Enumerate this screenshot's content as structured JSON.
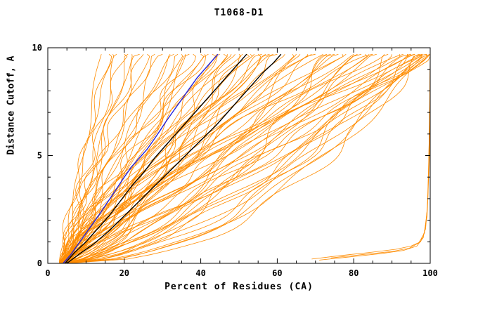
{
  "chart_data": {
    "type": "line",
    "title": "T1068-D1",
    "xlabel": "Percent of Residues (CA)",
    "ylabel": "Distance Cutoff, A",
    "xlim": [
      0,
      100
    ],
    "ylim": [
      0,
      10
    ],
    "x_ticks": [
      0,
      20,
      40,
      60,
      80,
      100
    ],
    "y_ticks": [
      0,
      5,
      10
    ],
    "x_minor_step": 5,
    "y_minor_step": 1,
    "grid": false,
    "legend": "none",
    "top_y": 9.7,
    "colors": {
      "models": "#ff8c00",
      "reference": "#000000",
      "highlight": "#2222dd",
      "axis": "#000000",
      "background": "#ffffff"
    },
    "series": [
      {
        "name": "black-curve-1",
        "color_key": "reference",
        "width": 1.4,
        "points": [
          [
            4.5,
            0
          ],
          [
            7,
            0.5
          ],
          [
            10,
            1
          ],
          [
            13,
            1.6
          ],
          [
            16,
            2.2
          ],
          [
            19,
            2.9
          ],
          [
            22,
            3.6
          ],
          [
            25,
            4.2
          ],
          [
            28,
            4.9
          ],
          [
            31,
            5.5
          ],
          [
            34,
            6.1
          ],
          [
            37,
            6.7
          ],
          [
            40,
            7.3
          ],
          [
            43,
            7.9
          ],
          [
            46,
            8.5
          ],
          [
            49,
            9.1
          ],
          [
            52,
            9.7
          ]
        ]
      },
      {
        "name": "black-curve-2",
        "color_key": "reference",
        "width": 1.4,
        "points": [
          [
            5,
            0
          ],
          [
            8,
            0.4
          ],
          [
            12,
            0.9
          ],
          [
            16,
            1.5
          ],
          [
            20,
            2.2
          ],
          [
            24,
            2.9
          ],
          [
            28,
            3.6
          ],
          [
            32,
            4.3
          ],
          [
            36,
            5
          ],
          [
            40,
            5.7
          ],
          [
            44,
            6.4
          ],
          [
            47,
            7
          ],
          [
            50,
            7.6
          ],
          [
            53,
            8.2
          ],
          [
            56,
            8.8
          ],
          [
            59,
            9.3
          ],
          [
            61,
            9.7
          ]
        ]
      },
      {
        "name": "blue-curve",
        "color_key": "highlight",
        "width": 1.4,
        "points": [
          [
            4,
            0
          ],
          [
            6,
            0.4
          ],
          [
            8,
            0.9
          ],
          [
            10,
            1.4
          ],
          [
            12,
            1.9
          ],
          [
            14,
            2.4
          ],
          [
            15.5,
            2.8
          ],
          [
            17,
            3.2
          ],
          [
            18.5,
            3.6
          ],
          [
            20,
            4
          ],
          [
            22,
            4.5
          ],
          [
            24,
            4.9
          ],
          [
            26,
            5.3
          ],
          [
            28,
            5.8
          ],
          [
            29.5,
            6.2
          ],
          [
            31,
            6.6
          ],
          [
            33,
            7.1
          ],
          [
            35,
            7.6
          ],
          [
            37,
            8.1
          ],
          [
            39,
            8.6
          ],
          [
            41,
            9
          ],
          [
            43,
            9.4
          ],
          [
            44.5,
            9.7
          ]
        ]
      }
    ],
    "outlier_curves": [
      [
        [
          69,
          0.2
        ],
        [
          76,
          0.35
        ],
        [
          84,
          0.5
        ],
        [
          91,
          0.65
        ],
        [
          95,
          0.8
        ],
        [
          97.5,
          1
        ],
        [
          98.8,
          1.6
        ],
        [
          99.4,
          3
        ],
        [
          99.7,
          5.5
        ],
        [
          99.9,
          8
        ],
        [
          100,
          9.7
        ]
      ],
      [
        [
          71,
          0.15
        ],
        [
          79,
          0.3
        ],
        [
          87,
          0.45
        ],
        [
          93,
          0.6
        ],
        [
          96.5,
          0.8
        ],
        [
          98.2,
          1.2
        ],
        [
          99.2,
          2.2
        ],
        [
          99.6,
          4.5
        ],
        [
          99.9,
          7.5
        ],
        [
          100,
          9.7
        ]
      ],
      [
        [
          74,
          0.25
        ],
        [
          82,
          0.4
        ],
        [
          90,
          0.55
        ],
        [
          94.5,
          0.7
        ],
        [
          97,
          0.95
        ],
        [
          98.5,
          1.4
        ],
        [
          99.3,
          2.6
        ],
        [
          99.8,
          5
        ],
        [
          100,
          9.7
        ]
      ]
    ],
    "model_curve_specs_format": [
      "x_at_y0",
      "x_at_top",
      "shape_exp",
      "wiggle_amp",
      "wiggle_freq",
      "wiggle_phase"
    ],
    "model_curve_specs": [
      [
        4,
        14,
        1.0,
        0.8,
        1.3,
        0.0
      ],
      [
        3,
        16,
        1.1,
        1.2,
        2.1,
        0.7
      ],
      [
        5,
        18,
        0.9,
        1.0,
        1.7,
        1.4
      ],
      [
        4,
        20,
        1.2,
        1.5,
        2.5,
        2.1
      ],
      [
        3,
        22,
        1.0,
        0.9,
        1.3,
        2.8
      ],
      [
        5,
        24,
        1.3,
        1.8,
        2.1,
        3.5
      ],
      [
        4,
        26,
        0.85,
        1.1,
        1.7,
        4.2
      ],
      [
        3,
        28,
        1.15,
        1.4,
        2.5,
        4.9
      ],
      [
        5,
        30,
        1.0,
        2.0,
        1.3,
        5.6
      ],
      [
        4,
        17,
        1.25,
        0.7,
        2.1,
        6.0
      ],
      [
        5,
        21,
        0.95,
        1.3,
        1.7,
        0.3
      ],
      [
        3,
        25,
        1.1,
        1.6,
        2.5,
        1.0
      ],
      [
        4,
        32,
        1.0,
        1.2,
        1.6,
        0.5
      ],
      [
        5,
        34,
        1.2,
        1.8,
        2.2,
        1.2
      ],
      [
        3,
        36,
        0.9,
        1.0,
        1.4,
        1.9
      ],
      [
        4,
        38,
        1.1,
        2.2,
        2.6,
        2.6
      ],
      [
        5,
        40,
        1.0,
        1.5,
        1.8,
        3.3
      ],
      [
        3,
        42,
        1.3,
        1.1,
        1.3,
        4.0
      ],
      [
        4,
        44,
        0.85,
        1.7,
        2.4,
        4.7
      ],
      [
        5,
        46,
        1.15,
        2.0,
        1.6,
        5.4
      ],
      [
        3,
        48,
        1.0,
        1.3,
        2.0,
        6.1
      ],
      [
        4,
        50,
        1.2,
        1.6,
        1.4,
        0.2
      ],
      [
        5,
        52,
        0.95,
        2.3,
        2.6,
        0.9
      ],
      [
        3,
        54,
        1.1,
        1.2,
        1.8,
        1.6
      ],
      [
        4,
        56,
        1.0,
        1.9,
        2.2,
        2.3
      ],
      [
        5,
        58,
        1.25,
        1.4,
        1.5,
        3.0
      ],
      [
        3,
        60,
        0.9,
        2.1,
        2.7,
        3.7
      ],
      [
        4,
        33,
        1.35,
        1.0,
        2.0,
        4.4
      ],
      [
        5,
        37,
        0.8,
        1.6,
        1.3,
        5.1
      ],
      [
        3,
        41,
        1.05,
        2.4,
        2.3,
        5.8
      ],
      [
        4,
        45,
        1.2,
        1.1,
        1.7,
        0.4
      ],
      [
        5,
        49,
        0.9,
        1.8,
        2.5,
        1.1
      ],
      [
        3,
        53,
        1.15,
        1.5,
        1.9,
        1.8
      ],
      [
        4,
        57,
        1.0,
        2.2,
        1.4,
        2.5
      ],
      [
        5,
        59,
        1.3,
        1.2,
        2.1,
        3.2
      ],
      [
        4,
        35,
        0.6,
        1.5,
        1.6,
        3.9
      ],
      [
        5,
        43,
        0.55,
        1.9,
        2.3,
        4.6
      ],
      [
        3,
        51,
        0.6,
        1.3,
        1.8,
        5.3
      ],
      [
        4,
        47,
        0.5,
        1.7,
        2.0,
        6.0
      ],
      [
        5,
        55,
        0.65,
        2.0,
        1.5,
        0.6
      ],
      [
        4,
        62,
        1.0,
        1.4,
        1.9,
        0.8
      ],
      [
        5,
        64,
        1.2,
        2.0,
        1.4,
        1.5
      ],
      [
        3,
        66,
        0.9,
        1.2,
        2.4,
        2.2
      ],
      [
        4,
        68,
        1.1,
        1.8,
        1.7,
        2.9
      ],
      [
        5,
        70,
        1.0,
        2.4,
        2.1,
        3.6
      ],
      [
        3,
        72,
        1.25,
        1.3,
        1.5,
        4.3
      ],
      [
        4,
        74,
        0.85,
        1.9,
        2.6,
        5.0
      ],
      [
        5,
        76,
        1.15,
        1.5,
        1.8,
        5.7
      ],
      [
        3,
        78,
        1.0,
        2.2,
        1.3,
        0.1
      ],
      [
        4,
        80,
        1.2,
        1.6,
        2.2,
        0.8
      ],
      [
        5,
        82,
        0.95,
        2.0,
        1.6,
        1.5
      ],
      [
        3,
        84,
        1.1,
        1.4,
        2.0,
        2.2
      ],
      [
        4,
        86,
        1.0,
        2.3,
        1.4,
        2.9
      ],
      [
        5,
        88,
        1.3,
        1.7,
        2.5,
        3.6
      ],
      [
        3,
        90,
        0.9,
        2.1,
        1.8,
        4.3
      ],
      [
        4,
        92,
        1.05,
        1.5,
        2.3,
        5.0
      ],
      [
        5,
        94,
        1.2,
        2.4,
        1.6,
        5.7
      ],
      [
        3,
        96,
        1.0,
        1.8,
        1.9,
        0.3
      ],
      [
        4,
        98,
        1.1,
        2.0,
        1.5,
        1.0
      ],
      [
        5,
        100,
        0.95,
        2.5,
        2.1,
        1.7
      ],
      [
        4,
        65,
        0.55,
        1.6,
        1.7,
        2.4
      ],
      [
        5,
        73,
        0.5,
        2.0,
        2.2,
        3.1
      ],
      [
        3,
        81,
        0.6,
        1.8,
        1.5,
        3.8
      ],
      [
        4,
        89,
        0.45,
        2.2,
        1.9,
        4.5
      ],
      [
        5,
        97,
        0.5,
        1.9,
        1.6,
        5.2
      ],
      [
        3,
        69,
        1.4,
        1.3,
        2.0,
        5.9
      ],
      [
        4,
        77,
        1.35,
        1.7,
        1.4,
        0.5
      ],
      [
        5,
        85,
        1.45,
        2.1,
        2.4,
        1.2
      ],
      [
        3,
        93,
        1.3,
        1.5,
        1.7,
        1.9
      ],
      [
        4,
        99,
        1.4,
        1.9,
        2.1,
        2.6
      ],
      [
        5,
        75,
        0.7,
        2.3,
        1.5,
        3.3
      ],
      [
        4,
        83,
        0.65,
        1.6,
        2.3,
        4.0
      ],
      [
        5,
        95,
        0.8,
        2.6,
        2.0,
        4.7
      ],
      [
        4,
        97,
        0.75,
        2.2,
        1.6,
        5.4
      ],
      [
        3,
        99,
        0.85,
        2.8,
        2.2,
        0.2
      ],
      [
        5,
        100,
        0.7,
        2.0,
        1.8,
        0.9
      ],
      [
        4,
        100,
        0.8,
        2.5,
        1.3,
        1.6
      ],
      [
        3,
        98,
        0.9,
        2.2,
        2.4,
        2.3
      ],
      [
        5,
        99,
        0.6,
        1.8,
        1.7,
        3.0
      ],
      [
        4,
        96,
        0.55,
        2.4,
        2.1,
        3.7
      ],
      [
        3,
        100,
        0.5,
        2.0,
        1.5,
        4.4
      ],
      [
        5,
        98,
        0.45,
        2.6,
        1.9,
        5.1
      ],
      [
        4,
        94,
        0.6,
        2.1,
        2.3,
        5.8
      ],
      [
        3,
        97,
        0.65,
        2.5,
        1.6,
        0.6
      ]
    ]
  }
}
